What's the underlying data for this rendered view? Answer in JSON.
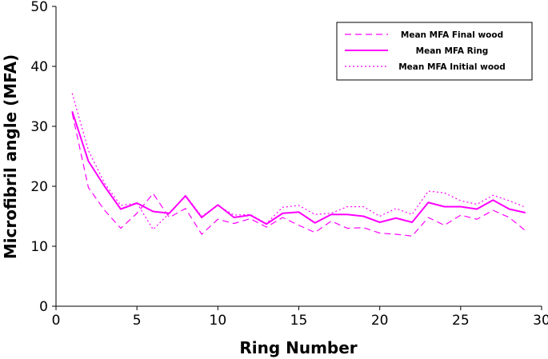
{
  "chart_data": {
    "type": "line",
    "title": "",
    "xlabel": "Ring Number",
    "ylabel": "Microfibril angle (MFA)",
    "xlim": [
      0,
      30
    ],
    "ylim": [
      0,
      50
    ],
    "xticks": [
      "0",
      "5",
      "10",
      "15",
      "20",
      "25",
      "30"
    ],
    "yticks": [
      "0",
      "10",
      "20",
      "30",
      "40",
      "50"
    ],
    "grid": false,
    "legend_position": "top-right",
    "line_color": "#ff00ff",
    "x": [
      1,
      2,
      3,
      4,
      5,
      6,
      7,
      8,
      9,
      10,
      11,
      12,
      13,
      14,
      15,
      16,
      17,
      18,
      19,
      20,
      21,
      22,
      23,
      24,
      25,
      26,
      27,
      28,
      29
    ],
    "series": [
      {
        "name": "Mean MFA Final wood",
        "style": "dashed",
        "values": [
          32.2,
          19.8,
          16.0,
          13.0,
          15.5,
          18.8,
          14.8,
          16.3,
          12.0,
          14.5,
          13.8,
          14.6,
          13.2,
          14.8,
          13.5,
          12.3,
          14.2,
          13.0,
          13.1,
          12.2,
          12.0,
          11.7,
          14.8,
          13.5,
          15.2,
          14.5,
          16.0,
          14.8,
          12.6
        ]
      },
      {
        "name": "Mean MFA Ring",
        "style": "solid",
        "values": [
          32.5,
          24.2,
          20.0,
          16.2,
          17.2,
          15.8,
          15.5,
          18.4,
          14.8,
          16.9,
          14.8,
          15.2,
          13.7,
          15.5,
          15.7,
          13.9,
          15.3,
          15.3,
          15.0,
          14.0,
          14.7,
          14.0,
          17.3,
          16.6,
          16.6,
          16.2,
          17.7,
          16.2,
          15.6
        ]
      },
      {
        "name": "Mean MFA Initial wood",
        "style": "dotted",
        "values": [
          35.5,
          26.0,
          20.5,
          16.8,
          17.2,
          12.8,
          15.5,
          18.5,
          15.0,
          16.8,
          15.2,
          15.3,
          13.8,
          16.5,
          16.8,
          15.3,
          15.5,
          16.6,
          16.6,
          15.0,
          16.3,
          15.3,
          19.2,
          18.9,
          17.6,
          17.0,
          18.5,
          17.6,
          16.5
        ]
      }
    ]
  }
}
